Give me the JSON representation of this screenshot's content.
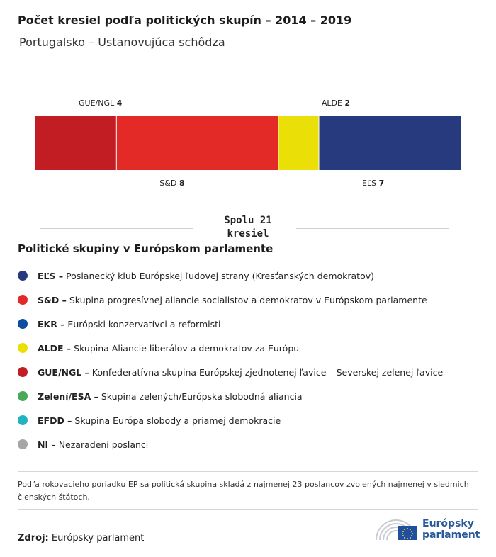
{
  "title": "Počet kresiel podľa politických skupín – 2014 – 2019",
  "subtitle": "Portugalsko – Ustanovujúca schôdza",
  "chart_data": {
    "type": "bar",
    "title": "Počet kresiel podľa politických skupín – 2014 – 2019",
    "subtitle": "Portugalsko – Ustanovujúca schôdza",
    "categories": [
      "GUE/NGL",
      "S&D",
      "ALDE",
      "EĽS"
    ],
    "values": [
      4,
      8,
      2,
      7
    ],
    "colors": [
      "#c21d22",
      "#e32a26",
      "#eadf06",
      "#263a7d"
    ],
    "label_side": [
      "top",
      "bottom",
      "top",
      "bottom"
    ],
    "total": 21,
    "total_label": "Spolu 21 kresiel"
  },
  "total_line1": "Spolu 21",
  "total_line2": "kresiel",
  "legend_title": "Politické skupiny v Európskom parlamente",
  "legend": [
    {
      "abbr": "EĽS –",
      "desc": "Poslanecký klub Európskej ľudovej strany (Kresťanských demokratov)",
      "color": "#263a7d"
    },
    {
      "abbr": "S&D –",
      "desc": "Skupina progresívnej aliancie socialistov a demokratov v Európskom parlamente",
      "color": "#e32a26"
    },
    {
      "abbr": "EKR –",
      "desc": "Európski konzervatívci a reformisti",
      "color": "#0d4c9e"
    },
    {
      "abbr": "ALDE –",
      "desc": "Skupina Aliancie liberálov a demokratov za Európu",
      "color": "#eadf06"
    },
    {
      "abbr": "GUE/NGL –",
      "desc": "Konfederatívna skupina Európskej zjednotenej ľavice – Severskej zelenej ľavice",
      "color": "#c21d22"
    },
    {
      "abbr": "Zelení/ESA –",
      "desc": "Skupina zelených/Európska slobodná aliancia",
      "color": "#4aaa5a"
    },
    {
      "abbr": "EFDD –",
      "desc": "Skupina Európa slobody a priamej demokracie",
      "color": "#1fb3c3"
    },
    {
      "abbr": "NI –",
      "desc": "Nezaradení poslanci",
      "color": "#a6a6a6"
    }
  ],
  "note": "Podľa rokovacieho poriadku EP sa politická skupina skladá z najmenej 23 poslancov zvolených najmenej v siedmich členských štátoch.",
  "source_label": "Zdroj:",
  "source_value": "Európsky parlament",
  "logo_line1": "Európsky",
  "logo_line2": "parlament",
  "logo_icon": "european-parliament-hemicycle-logo"
}
